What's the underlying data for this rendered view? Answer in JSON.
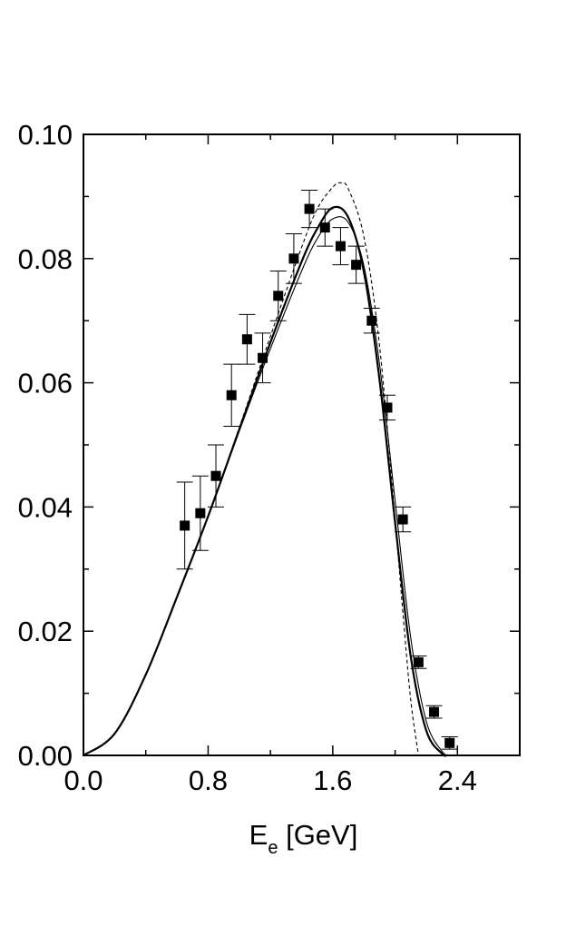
{
  "chart_data": {
    "type": "scatter",
    "title": "",
    "xlabel": {
      "main": "E",
      "sub": "e",
      "unit": " [GeV]"
    },
    "ylabel": "",
    "xlim": [
      0.0,
      2.8
    ],
    "ylim": [
      0.0,
      0.1
    ],
    "x_ticks": [
      0.0,
      0.8,
      1.6,
      2.4
    ],
    "x_tick_labels": [
      "0.0",
      "0.8",
      "1.6",
      "2.4"
    ],
    "y_ticks": [
      0.0,
      0.02,
      0.04,
      0.06,
      0.08,
      0.1
    ],
    "y_tick_labels": [
      "0.00",
      "0.02",
      "0.04",
      "0.06",
      "0.08",
      "0.10"
    ],
    "grid": false,
    "legend": "none",
    "series": [
      {
        "kind": "points-with-errors",
        "marker": "filled-square",
        "color": "#000000",
        "x": [
          0.65,
          0.75,
          0.85,
          0.95,
          1.05,
          1.15,
          1.25,
          1.35,
          1.45,
          1.55,
          1.65,
          1.75,
          1.85,
          1.95,
          2.05,
          2.15,
          2.25,
          2.35
        ],
        "y": [
          0.037,
          0.039,
          0.045,
          0.058,
          0.067,
          0.064,
          0.074,
          0.08,
          0.088,
          0.085,
          0.082,
          0.079,
          0.07,
          0.056,
          0.038,
          0.015,
          0.007,
          0.002
        ],
        "err": [
          0.007,
          0.006,
          0.005,
          0.005,
          0.004,
          0.004,
          0.004,
          0.004,
          0.003,
          0.003,
          0.003,
          0.003,
          0.002,
          0.002,
          0.002,
          0.001,
          0.001,
          0.001
        ]
      },
      {
        "kind": "line",
        "style": "solid",
        "stroke_width": 2.2,
        "color": "#000000",
        "x": [
          0.0,
          0.2,
          0.4,
          0.6,
          0.8,
          1.0,
          1.2,
          1.4,
          1.5,
          1.6,
          1.7,
          1.8,
          1.9,
          2.0,
          2.1,
          2.2,
          2.3,
          2.33
        ],
        "y": [
          0.0,
          0.0035,
          0.013,
          0.0255,
          0.0385,
          0.0525,
          0.0665,
          0.0795,
          0.0848,
          0.0882,
          0.0866,
          0.0778,
          0.0605,
          0.0375,
          0.016,
          0.004,
          0.0003,
          0.0
        ]
      },
      {
        "kind": "line",
        "style": "solid",
        "stroke_width": 1.1,
        "color": "#000000",
        "x": [
          0.0,
          0.2,
          0.4,
          0.6,
          0.8,
          1.0,
          1.2,
          1.4,
          1.5,
          1.6,
          1.7,
          1.8,
          1.9,
          2.0,
          2.1,
          2.2,
          2.3,
          2.35
        ],
        "y": [
          0.0,
          0.0035,
          0.013,
          0.0255,
          0.0385,
          0.0522,
          0.0655,
          0.078,
          0.0832,
          0.0864,
          0.0858,
          0.0788,
          0.063,
          0.041,
          0.019,
          0.0055,
          0.0007,
          0.0
        ]
      },
      {
        "kind": "line",
        "style": "dashed",
        "stroke_width": 1.1,
        "color": "#000000",
        "x": [
          0.0,
          0.2,
          0.4,
          0.6,
          0.8,
          1.0,
          1.2,
          1.4,
          1.5,
          1.6,
          1.65,
          1.7,
          1.8,
          1.9,
          2.0,
          2.05,
          2.1,
          2.15
        ],
        "y": [
          0.0,
          0.0035,
          0.013,
          0.0255,
          0.0385,
          0.0528,
          0.0675,
          0.0818,
          0.088,
          0.0915,
          0.0922,
          0.0912,
          0.0835,
          0.066,
          0.038,
          0.023,
          0.009,
          0.0
        ]
      }
    ]
  }
}
